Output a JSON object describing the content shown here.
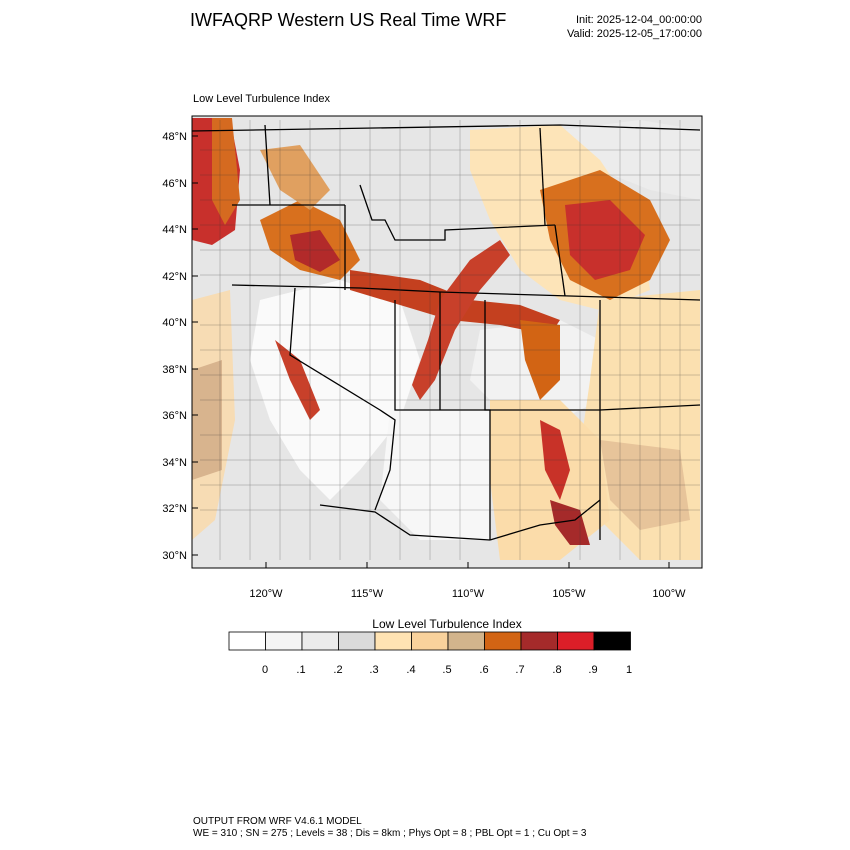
{
  "header": {
    "title": "IWFAQRP Western US Real Time WRF",
    "init": "Init: 2025-12-04_00:00:00",
    "valid": "Valid: 2025-12-05_17:00:00"
  },
  "panel": {
    "title": "Low Level Turbulence Index"
  },
  "map": {
    "lat_labels": [
      "48°N",
      "46°N",
      "44°N",
      "42°N",
      "40°N",
      "38°N",
      "36°N",
      "34°N",
      "32°N",
      "30°N"
    ],
    "lon_labels": [
      "120°W",
      "115°W",
      "110°W",
      "105°W",
      "100°W"
    ]
  },
  "colorbar": {
    "title": "Low Level Turbulence Index",
    "labels": [
      "0",
      ".1",
      ".2",
      ".3",
      ".4",
      ".5",
      ".6",
      ".7",
      ".8",
      ".9",
      "1"
    ],
    "colors": [
      "#ffffff",
      "#f5f5f5",
      "#ebebeb",
      "#dadada",
      "#ffe3b3",
      "#f9d29c",
      "#d2b48c",
      "#d26414",
      "#a52a2a",
      "#dc1e28",
      "#000000"
    ]
  },
  "footer": {
    "line1": "OUTPUT FROM WRF V4.6.1 MODEL",
    "line2": "WE = 310 ; SN = 275 ; Levels = 38 ; Dis = 8km ; Phys Opt = 8 ; PBL Opt = 1 ; Cu Opt = 3"
  }
}
